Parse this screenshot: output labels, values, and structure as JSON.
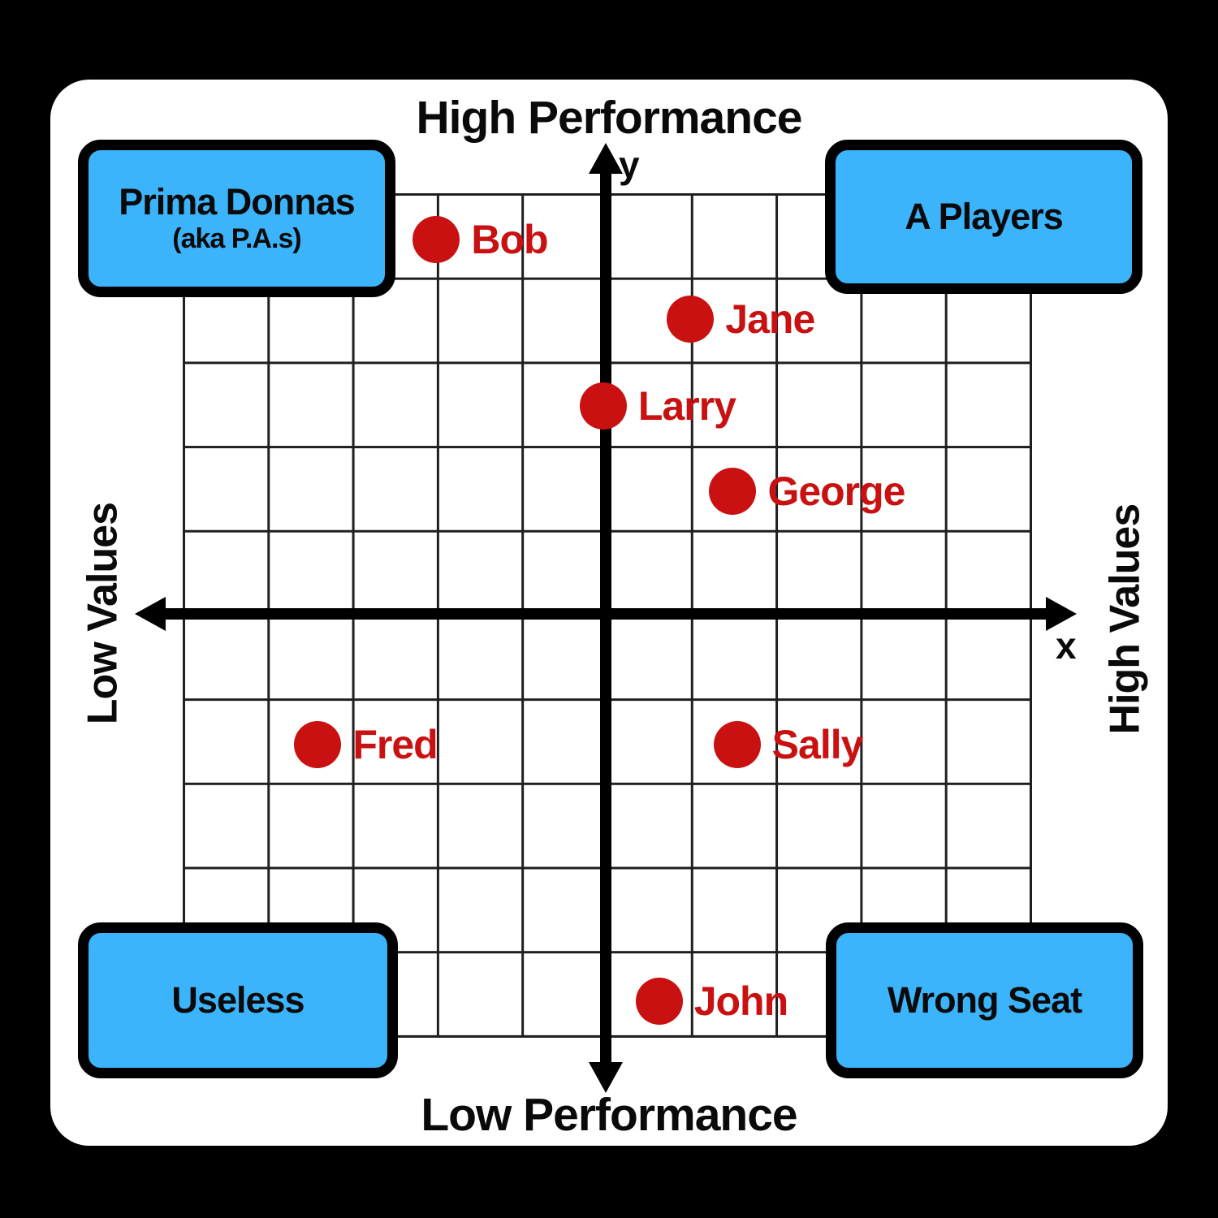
{
  "colors": {
    "quadrant_box_fill": "#3bb4fb",
    "point_color": "#c91111",
    "axis_color": "#000000",
    "grid_line_color": "#1f1f1f",
    "panel_bg": "#ffffff",
    "text_color": "#0a0a0a"
  },
  "axis_labels": {
    "top": "High Performance",
    "bottom": "Low Performance",
    "left": "Low Values",
    "right": "High Values",
    "x_symbol": "x",
    "y_symbol": "y"
  },
  "quadrants": {
    "top_left": {
      "title": "Prima Donnas",
      "subtitle": "(aka P.A.s)"
    },
    "top_right": {
      "title": "A Players"
    },
    "bottom_left": {
      "title": "Useless"
    },
    "bottom_right": {
      "title": "Wrong Seat"
    }
  },
  "chart_data": {
    "type": "scatter",
    "title": "Performance vs Values quadrant matrix",
    "x_axis": {
      "symbol": "x",
      "label_negative": "Low Values",
      "label_positive": "High Values",
      "range": [
        -5,
        5
      ],
      "grid": true,
      "gridlines": 10
    },
    "y_axis": {
      "symbol": "y",
      "label_negative": "Low Performance",
      "label_positive": "High Performance",
      "range": [
        -5,
        5
      ],
      "grid": true,
      "gridlines": 10
    },
    "quadrant_labels": {
      "top_left": "Prima Donnas (aka P.A.s)",
      "top_right": "A Players",
      "bottom_left": "Useless",
      "bottom_right": "Wrong Seat"
    },
    "points": [
      {
        "name": "Bob",
        "x": -2.0,
        "y": 4.45
      },
      {
        "name": "Jane",
        "x": 1.0,
        "y": 3.5
      },
      {
        "name": "Larry",
        "x": -0.03,
        "y": 2.47
      },
      {
        "name": "George",
        "x": 1.5,
        "y": 1.46
      },
      {
        "name": "Fred",
        "x": -3.4,
        "y": -1.55
      },
      {
        "name": "Sally",
        "x": 1.55,
        "y": -1.55
      },
      {
        "name": "John",
        "x": 0.63,
        "y": -4.6
      }
    ]
  }
}
